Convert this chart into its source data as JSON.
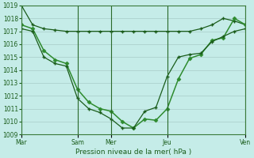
{
  "bg_color": "#c5ece8",
  "line_color_dark": "#1a5c1a",
  "line_color_medium": "#2e8b2e",
  "grid_color": "#a8ccc8",
  "vline_color": "#2a6a2a",
  "s1_x": [
    0,
    0.5,
    1,
    1.5,
    2,
    2.5,
    3,
    3.5,
    4,
    4.5,
    5,
    5.5,
    6,
    6.5,
    7,
    7.5,
    8,
    8.5,
    9,
    9.5,
    10
  ],
  "s1_y": [
    1019.0,
    1017.5,
    1017.2,
    1017.1,
    1017.0,
    1017.0,
    1017.0,
    1017.0,
    1017.0,
    1017.0,
    1017.0,
    1017.0,
    1017.0,
    1017.0,
    1017.0,
    1017.0,
    1017.2,
    1017.5,
    1018.0,
    1017.8,
    1017.5
  ],
  "s2_x": [
    0,
    0.5,
    1,
    1.5,
    2,
    2.5,
    3,
    3.5,
    4,
    4.5,
    5,
    5.5,
    6,
    6.5,
    7,
    7.5,
    8,
    8.5,
    9,
    9.5,
    10
  ],
  "s2_y": [
    1017.5,
    1017.2,
    1015.5,
    1014.8,
    1014.5,
    1012.5,
    1011.5,
    1011.0,
    1010.8,
    1010.0,
    1009.5,
    1010.2,
    1010.1,
    1011.0,
    1013.3,
    1014.9,
    1015.2,
    1016.3,
    1016.5,
    1018.0,
    1017.5
  ],
  "s3_x": [
    0,
    0.5,
    1,
    1.5,
    2,
    2.5,
    3,
    3.5,
    4,
    4.5,
    5,
    5.5,
    6,
    6.5,
    7,
    7.5,
    8,
    8.5,
    9,
    9.5,
    10
  ],
  "s3_y": [
    1017.2,
    1017.0,
    1015.0,
    1014.5,
    1014.3,
    1011.8,
    1011.0,
    1010.7,
    1010.2,
    1009.5,
    1009.5,
    1010.8,
    1011.1,
    1013.5,
    1015.0,
    1015.2,
    1015.3,
    1016.2,
    1016.6,
    1017.0,
    1017.2
  ],
  "vlines_x": [
    0,
    2.5,
    4.0,
    6.5,
    10.0
  ],
  "xtick_positions": [
    0,
    2.5,
    4.0,
    6.5,
    10.0
  ],
  "xtick_labels": [
    "Mar",
    "Sam",
    "Mer",
    "Jeu",
    "Ven"
  ],
  "ylim": [
    1009,
    1019
  ],
  "xlim": [
    0,
    10
  ],
  "xlabel": "Pression niveau de la mer( hPa )"
}
